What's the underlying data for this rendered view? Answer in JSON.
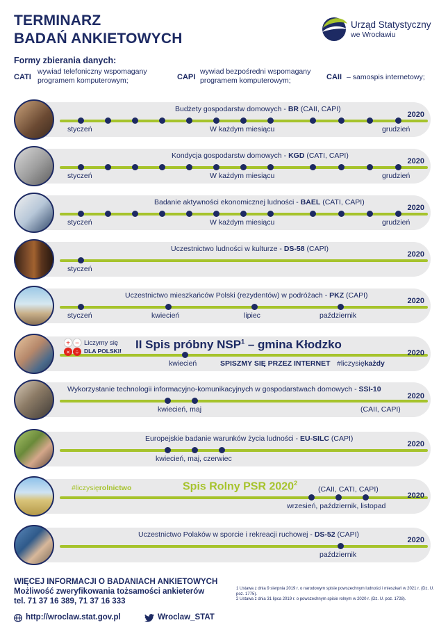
{
  "header": {
    "title_line1": "TERMINARZ",
    "title_line2": "BADAŃ ANKIETOWYCH",
    "logo_name": "Urząd Statystyczny",
    "logo_sub": "we Wrocławiu"
  },
  "methods": {
    "title": "Formy zbierania danych:",
    "items": [
      {
        "code": "CATI",
        "desc1": "wywiad telefoniczny wspomagany",
        "desc2": "programem komputerowym;"
      },
      {
        "code": "CAPI",
        "desc1": "wywiad bezpośredni wspomagany",
        "desc2": "programem komputerowym;"
      },
      {
        "code": "CAII",
        "desc1": "– samospis internetowy;",
        "desc2": ""
      }
    ]
  },
  "year": "2020",
  "surveys": [
    {
      "name": "Budżety gospodarstw domowych - ",
      "code": "BR",
      "methods": " (CAII, CAPI)",
      "label_start": "styczeń",
      "label_mid": "W każdym miesiącu",
      "label_end": "grudzień"
    },
    {
      "name": "Kondycja gospodarstw domowych - ",
      "code": "KGD",
      "methods": " (CATI, CAPI)",
      "label_start": "styczeń",
      "label_mid": "W każdym miesiącu",
      "label_end": "grudzień"
    },
    {
      "name": "Badanie aktywności ekonomicznej ludności - ",
      "code": "BAEL",
      "methods": " (CATI, CAPI)",
      "label_start": "styczeń",
      "label_mid": "W każdym miesiącu",
      "label_end": "grudzień"
    },
    {
      "name": "Uczestnictwo ludności w kulturze - ",
      "code": "DS-58",
      "methods": "  (CAPI)",
      "label_start": "styczeń"
    },
    {
      "name": "Uczestnictwo mieszkańców Polski (rezydentów) w podróżach - ",
      "code": "PKZ",
      "methods": "  (CAPI)",
      "labels": [
        "styczeń",
        "kwiecień",
        "lipiec",
        "październik"
      ]
    },
    {
      "nsp_title": "II Spis próbny NSP",
      "nsp_sup": "1",
      "nsp_place": " – gmina Kłodzko",
      "badge1": "Liczymy się",
      "badge2": "DLA POLSKI!",
      "label_start": "kwiecień",
      "slogan": "SPISZMY SIĘ PRZEZ INTERNET",
      "hashtag": "#liczysię",
      "hashtag_bold": "każdy"
    },
    {
      "name": "Wykorzystanie technologii informacyjno-komunikacyjnych w gospodarstwach domowych - ",
      "code": "SSI-10",
      "label_start": "kwiecień, maj",
      "methods_right": "(CAII, CAPI)"
    },
    {
      "name": "Europejskie badanie warunków życia ludności - ",
      "code": "EU-SILC",
      "methods": "  (CAPI)",
      "label_start": "kwiecień, maj, czerwiec"
    },
    {
      "hashtag": "#liczysię",
      "hashtag_bold": "rolnictwo",
      "psr_title": "Spis Rolny PSR 2020",
      "psr_sup": "2",
      "methods": "(CAII, CATI, CAPI)",
      "label_end": "wrzesień, październik, listopad"
    },
    {
      "name": "Uczestnictwo Polaków w sporcie i rekreacji ruchowej - ",
      "code": "DS-52",
      "methods": "  (CAPI)",
      "label_end": "październik"
    }
  ],
  "footer": {
    "line1": "WIĘCEJ INFORMACJI O BADANIACH ANKIETOWYCH",
    "line2": "Możliwość zweryfikowania tożsamości ankieterów",
    "line3": "tel. 71 37 16 389, 71 37 16 333",
    "website": "http://wroclaw.stat.gov.pl",
    "twitter": "Wroclaw_STAT",
    "note1": "1 Ustawa z dnia 9 sierpnia 2019 r. o narodowym spisie powszechnym ludności i mieszkań w 2021 r. (Dz. U. poz. 1775).",
    "note2": "2 Ustawa z dnia 31 lipca 2019 r. o powszechnym spisie rolnym w 2020 r. (Dz. U. poz. 1728)."
  }
}
